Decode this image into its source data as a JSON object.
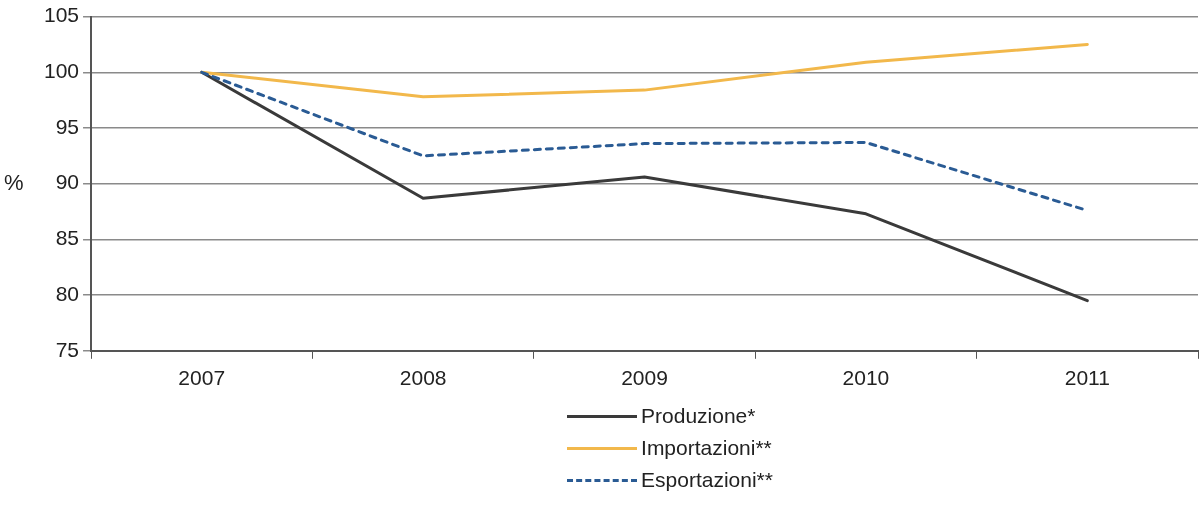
{
  "chart_data": {
    "type": "line",
    "ylabel": "%",
    "categories": [
      "2007",
      "2008",
      "2009",
      "2010",
      "2011"
    ],
    "series": [
      {
        "name": "Produzione*",
        "color": "#3a3a3a",
        "line_style": "solid",
        "values": [
          100,
          88.7,
          90.6,
          87.3,
          79.5
        ]
      },
      {
        "name": "Importazioni**",
        "color": "#f2b84b",
        "line_style": "solid",
        "values": [
          100,
          97.8,
          98.4,
          100.9,
          102.5
        ]
      },
      {
        "name": "Esportazioni**",
        "color": "#2a5b94",
        "line_style": "dashed",
        "values": [
          100,
          92.5,
          93.6,
          93.7,
          87.6
        ]
      }
    ],
    "ylim": [
      75,
      105
    ],
    "yticks": [
      75,
      80,
      85,
      90,
      95,
      100,
      105
    ],
    "grid": "y",
    "legend": "bottom",
    "marker": "none"
  }
}
